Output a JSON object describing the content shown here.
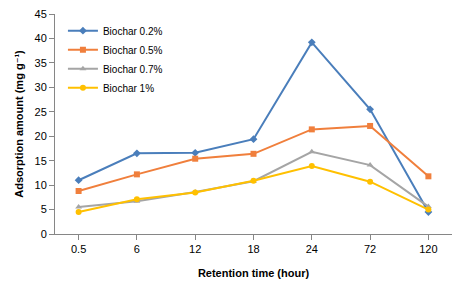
{
  "chart_data": {
    "type": "line",
    "x_label": "Retention time (hour)",
    "y_label": "Adsorption amount (mg g⁻¹)",
    "categories": [
      "0.5",
      "6",
      "12",
      "18",
      "24",
      "72",
      "120"
    ],
    "series": [
      {
        "name": "Biochar 0.2%",
        "color": "#4a7ebb",
        "marker": "diamond",
        "line_style": "solid",
        "values": [
          11.0,
          16.5,
          16.6,
          19.4,
          39.2,
          25.5,
          4.5
        ]
      },
      {
        "name": "Biochar 0.5%",
        "color": "#f07f3c",
        "marker": "square",
        "line_style": "solid",
        "values": [
          8.8,
          12.2,
          15.4,
          16.4,
          21.4,
          22.1,
          11.8
        ]
      },
      {
        "name": "Biochar 0.7%",
        "color": "#a5a5a5",
        "marker": "triangle-up",
        "line_style": "solid",
        "values": [
          5.5,
          6.7,
          8.6,
          10.8,
          16.8,
          14.1,
          5.6
        ]
      },
      {
        "name": "Biochar 1%",
        "color": "#ffc000",
        "marker": "circle",
        "line_style": "solid",
        "values": [
          4.5,
          7.1,
          8.5,
          10.9,
          13.9,
          10.7,
          5.0
        ]
      }
    ],
    "ylim": [
      0,
      45
    ],
    "yticks": [
      0,
      5,
      10,
      15,
      20,
      25,
      30,
      35,
      40,
      45
    ],
    "grid": false,
    "legend": "upper left"
  }
}
